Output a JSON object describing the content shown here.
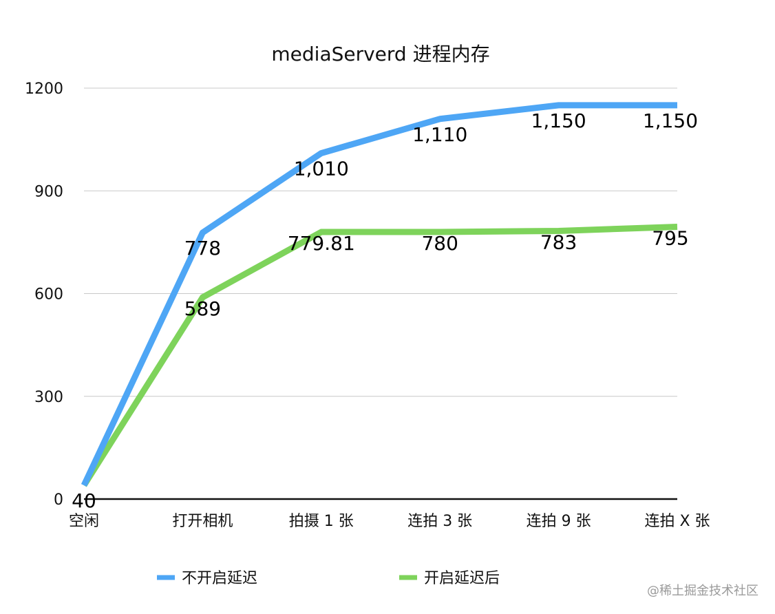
{
  "chart_data": {
    "type": "line",
    "title": "mediaServerd 进程内存",
    "xlabel": "",
    "ylabel": "",
    "ylim": [
      0,
      1200
    ],
    "y_ticks": [
      0,
      300,
      600,
      900,
      1200
    ],
    "grid": true,
    "legend_position": "bottom",
    "categories": [
      "空闲",
      "打开相机",
      "拍摄 1 张",
      "连拍 3 张",
      "连拍 9 张",
      "连拍 X 张"
    ],
    "series": [
      {
        "name": "不开启延迟",
        "color": "#4ea6f5",
        "values": [
          40,
          778,
          1010,
          1110,
          1150,
          1150
        ],
        "labels": [
          "40",
          "778",
          "1,010",
          "1,110",
          "1,150",
          "1,150"
        ]
      },
      {
        "name": "开启延迟后",
        "color": "#7ed35b",
        "values": [
          40,
          589,
          779.81,
          780,
          783,
          795
        ],
        "labels": [
          "40",
          "589",
          "779.81",
          "780",
          "783",
          "795"
        ]
      }
    ]
  },
  "watermark": "@稀土掘金技术社区"
}
